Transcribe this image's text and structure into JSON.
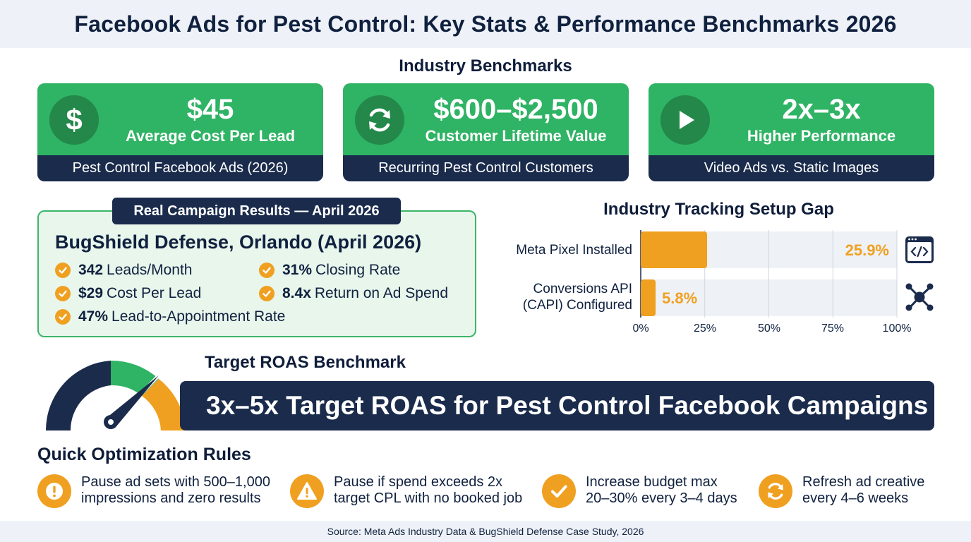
{
  "title": "Facebook Ads for Pest Control: Key Stats & Performance Benchmarks 2026",
  "industry_heading": "Industry Benchmarks",
  "kpis": [
    {
      "icon": "dollar-icon",
      "value": "$45",
      "label": "Average Cost Per Lead",
      "caption": "Pest Control Facebook Ads (2026)"
    },
    {
      "icon": "refresh-icon",
      "value": "$600–$2,500",
      "label": "Customer Lifetime Value",
      "caption": "Recurring Pest Control Customers"
    },
    {
      "icon": "play-icon",
      "value": "2x–3x",
      "label": "Higher Performance",
      "caption": "Video Ads vs. Static Images"
    }
  ],
  "campaign": {
    "badge": "Real Campaign Results — April 2026",
    "title": "BugShield Defense, Orlando (April 2026)",
    "stats": [
      {
        "value": "342",
        "text": "Leads/Month"
      },
      {
        "value": "31%",
        "text": "Closing Rate"
      },
      {
        "value": "$29",
        "text": "Cost Per Lead"
      },
      {
        "value": "8.4x",
        "text": "Return on Ad Spend"
      },
      {
        "value": "47%",
        "text": "Lead-to-Appointment Rate"
      }
    ]
  },
  "chart_data": {
    "type": "bar",
    "orientation": "horizontal",
    "title": "Industry Tracking Setup Gap",
    "categories": [
      "Meta Pixel Installed",
      "Conversions API (CAPI) Configured"
    ],
    "category_lines": [
      [
        "Meta Pixel Installed"
      ],
      [
        "Conversions API",
        "(CAPI) Configured"
      ]
    ],
    "values": [
      25.9,
      5.8
    ],
    "value_labels": [
      "25.9%",
      "5.8%"
    ],
    "xlim": [
      0,
      100
    ],
    "ticks": [
      "0%",
      "25%",
      "50%",
      "75%",
      "100%"
    ],
    "tick_values": [
      0,
      25,
      50,
      75,
      100
    ],
    "bar_color": "#f0a020",
    "track_color": "#eef1f6",
    "grid": true,
    "row_icons": [
      "code-window-icon",
      "network-icon"
    ]
  },
  "roas": {
    "heading": "Target ROAS Benchmark",
    "banner": "3x–5x Target ROAS for Pest Control Facebook Campaigns"
  },
  "rules": {
    "heading": "Quick Optimization Rules",
    "items": [
      {
        "icon": "exclamation-icon",
        "lines": [
          "Pause ad sets with 500–1,000",
          "impressions and zero results"
        ]
      },
      {
        "icon": "warning-icon",
        "lines": [
          "Pause if spend exceeds 2x",
          "target CPL with no booked job"
        ]
      },
      {
        "icon": "check-icon",
        "lines": [
          "Increase budget max",
          "20–30% every 3–4 days"
        ]
      },
      {
        "icon": "refresh-icon",
        "lines": [
          "Refresh ad creative",
          "every 4–6 weeks"
        ]
      }
    ]
  },
  "source": "Source: Meta Ads Industry Data & BugShield Defense Case Study, 2026",
  "colors": {
    "green": "#2fb364",
    "navy": "#1a2b4c",
    "orange": "#f0a020",
    "light_green": "#e8f6ec"
  }
}
